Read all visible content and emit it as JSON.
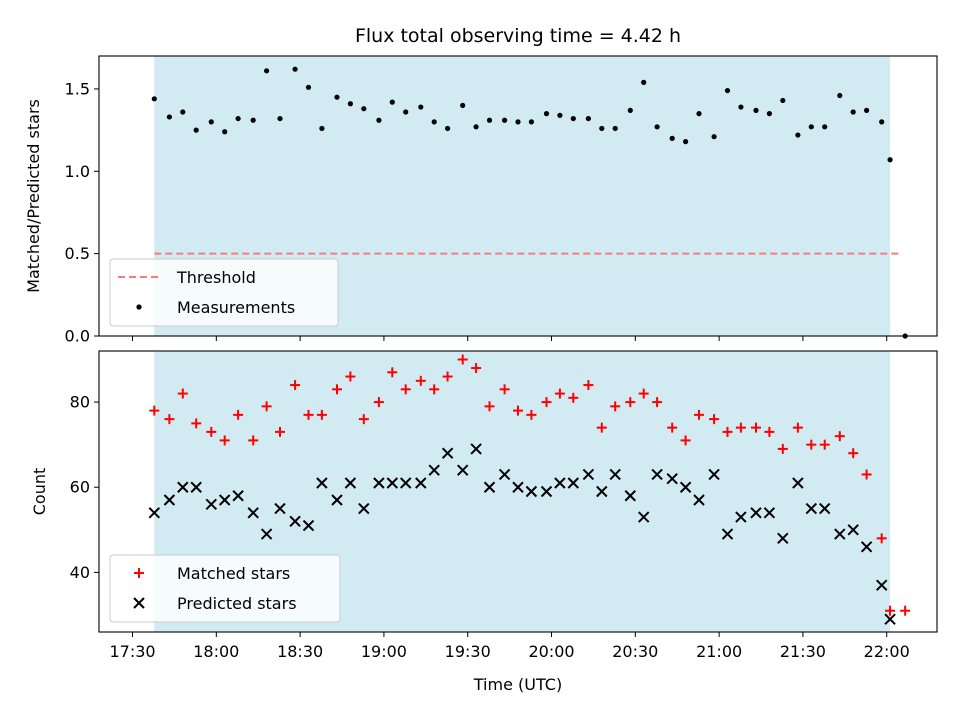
{
  "chart_data": [
    {
      "type": "scatter",
      "title": "Flux total observing time = 4.42 h",
      "ylabel": "Matched/Predicted stars",
      "ylim": [
        0,
        1.7
      ],
      "yticks": [
        "0.0",
        "0.5",
        "1.0",
        "1.5"
      ],
      "ytick_values": [
        0,
        0.5,
        1.0,
        1.5
      ],
      "xlim": [
        17.3,
        22.3
      ],
      "shaded_span": [
        17.63,
        22.02
      ],
      "shade_color": "#add8e6",
      "legend_position": "lower-left",
      "threshold": {
        "name": "Threshold",
        "y": 0.5,
        "x_range": [
          17.63,
          22.08
        ],
        "color": "#f08080",
        "style": "dashed"
      },
      "series": [
        {
          "name": "Measurements",
          "marker": "dot",
          "color": "#000000",
          "x": [
            17.63,
            17.72,
            17.8,
            17.88,
            17.97,
            18.05,
            18.13,
            18.22,
            18.3,
            18.38,
            18.47,
            18.55,
            18.63,
            18.72,
            18.8,
            18.88,
            18.97,
            19.05,
            19.13,
            19.22,
            19.3,
            19.38,
            19.47,
            19.55,
            19.63,
            19.72,
            19.8,
            19.88,
            19.97,
            20.05,
            20.13,
            20.22,
            20.3,
            20.38,
            20.47,
            20.55,
            20.63,
            20.72,
            20.8,
            20.88,
            20.97,
            21.05,
            21.13,
            21.22,
            21.3,
            21.38,
            21.47,
            21.55,
            21.63,
            21.72,
            21.8,
            21.88,
            21.97,
            22.02,
            22.11
          ],
          "y": [
            1.44,
            1.33,
            1.36,
            1.25,
            1.3,
            1.24,
            1.32,
            1.31,
            1.61,
            1.32,
            1.62,
            1.51,
            1.26,
            1.45,
            1.41,
            1.38,
            1.31,
            1.42,
            1.36,
            1.39,
            1.3,
            1.26,
            1.4,
            1.27,
            1.31,
            1.31,
            1.3,
            1.3,
            1.35,
            1.34,
            1.32,
            1.32,
            1.26,
            1.26,
            1.37,
            1.54,
            1.27,
            1.2,
            1.18,
            1.35,
            1.21,
            1.49,
            1.39,
            1.37,
            1.35,
            1.43,
            1.22,
            1.27,
            1.27,
            1.46,
            1.36,
            1.37,
            1.3,
            1.07,
            0.0
          ]
        }
      ]
    },
    {
      "type": "scatter",
      "xlabel": "Time (UTC)",
      "ylabel": "Count",
      "ylim": [
        26,
        92
      ],
      "yticks": [
        "40",
        "60",
        "80"
      ],
      "ytick_values": [
        40,
        60,
        80
      ],
      "xlim": [
        17.3,
        22.3
      ],
      "xticks": [
        "17:30",
        "18:00",
        "18:30",
        "19:00",
        "19:30",
        "20:00",
        "20:30",
        "21:00",
        "21:30",
        "22:00"
      ],
      "xtick_values": [
        17.5,
        18.0,
        18.5,
        19.0,
        19.5,
        20.0,
        20.5,
        21.0,
        21.5,
        22.0
      ],
      "shaded_span": [
        17.63,
        22.02
      ],
      "shade_color": "#add8e6",
      "legend_position": "lower-left",
      "series": [
        {
          "name": "Matched stars",
          "marker": "plus",
          "color": "#ff0000",
          "x": [
            17.63,
            17.72,
            17.8,
            17.88,
            17.97,
            18.05,
            18.13,
            18.22,
            18.3,
            18.38,
            18.47,
            18.55,
            18.63,
            18.72,
            18.8,
            18.88,
            18.97,
            19.05,
            19.13,
            19.22,
            19.3,
            19.38,
            19.47,
            19.55,
            19.63,
            19.72,
            19.8,
            19.88,
            19.97,
            20.05,
            20.13,
            20.22,
            20.3,
            20.38,
            20.47,
            20.55,
            20.63,
            20.72,
            20.8,
            20.88,
            20.97,
            21.05,
            21.13,
            21.22,
            21.3,
            21.38,
            21.47,
            21.55,
            21.63,
            21.72,
            21.8,
            21.88,
            21.97,
            22.02,
            22.11
          ],
          "y": [
            78,
            76,
            82,
            75,
            73,
            71,
            77,
            71,
            79,
            73,
            84,
            77,
            77,
            83,
            86,
            76,
            80,
            87,
            83,
            85,
            83,
            86,
            90,
            88,
            79,
            83,
            78,
            77,
            80,
            82,
            81,
            84,
            74,
            79,
            80,
            82,
            80,
            74,
            71,
            77,
            76,
            73,
            74,
            74,
            73,
            69,
            74,
            70,
            70,
            72,
            68,
            63,
            48,
            31,
            31
          ]
        },
        {
          "name": "Predicted stars",
          "marker": "x",
          "color": "#000000",
          "x": [
            17.63,
            17.72,
            17.8,
            17.88,
            17.97,
            18.05,
            18.13,
            18.22,
            18.3,
            18.38,
            18.47,
            18.55,
            18.63,
            18.72,
            18.8,
            18.88,
            18.97,
            19.05,
            19.13,
            19.22,
            19.3,
            19.38,
            19.47,
            19.55,
            19.63,
            19.72,
            19.8,
            19.88,
            19.97,
            20.05,
            20.13,
            20.22,
            20.3,
            20.38,
            20.47,
            20.55,
            20.63,
            20.72,
            20.8,
            20.88,
            20.97,
            21.05,
            21.13,
            21.22,
            21.3,
            21.38,
            21.47,
            21.55,
            21.63,
            21.72,
            21.8,
            21.88,
            21.97,
            22.02
          ],
          "y": [
            54,
            57,
            60,
            60,
            56,
            57,
            58,
            54,
            49,
            55,
            52,
            51,
            61,
            57,
            61,
            55,
            61,
            61,
            61,
            61,
            64,
            68,
            64,
            69,
            60,
            63,
            60,
            59,
            59,
            61,
            61,
            63,
            59,
            63,
            58,
            53,
            63,
            62,
            60,
            57,
            63,
            49,
            53,
            54,
            54,
            48,
            61,
            55,
            55,
            49,
            50,
            46,
            37,
            29
          ]
        }
      ]
    }
  ]
}
